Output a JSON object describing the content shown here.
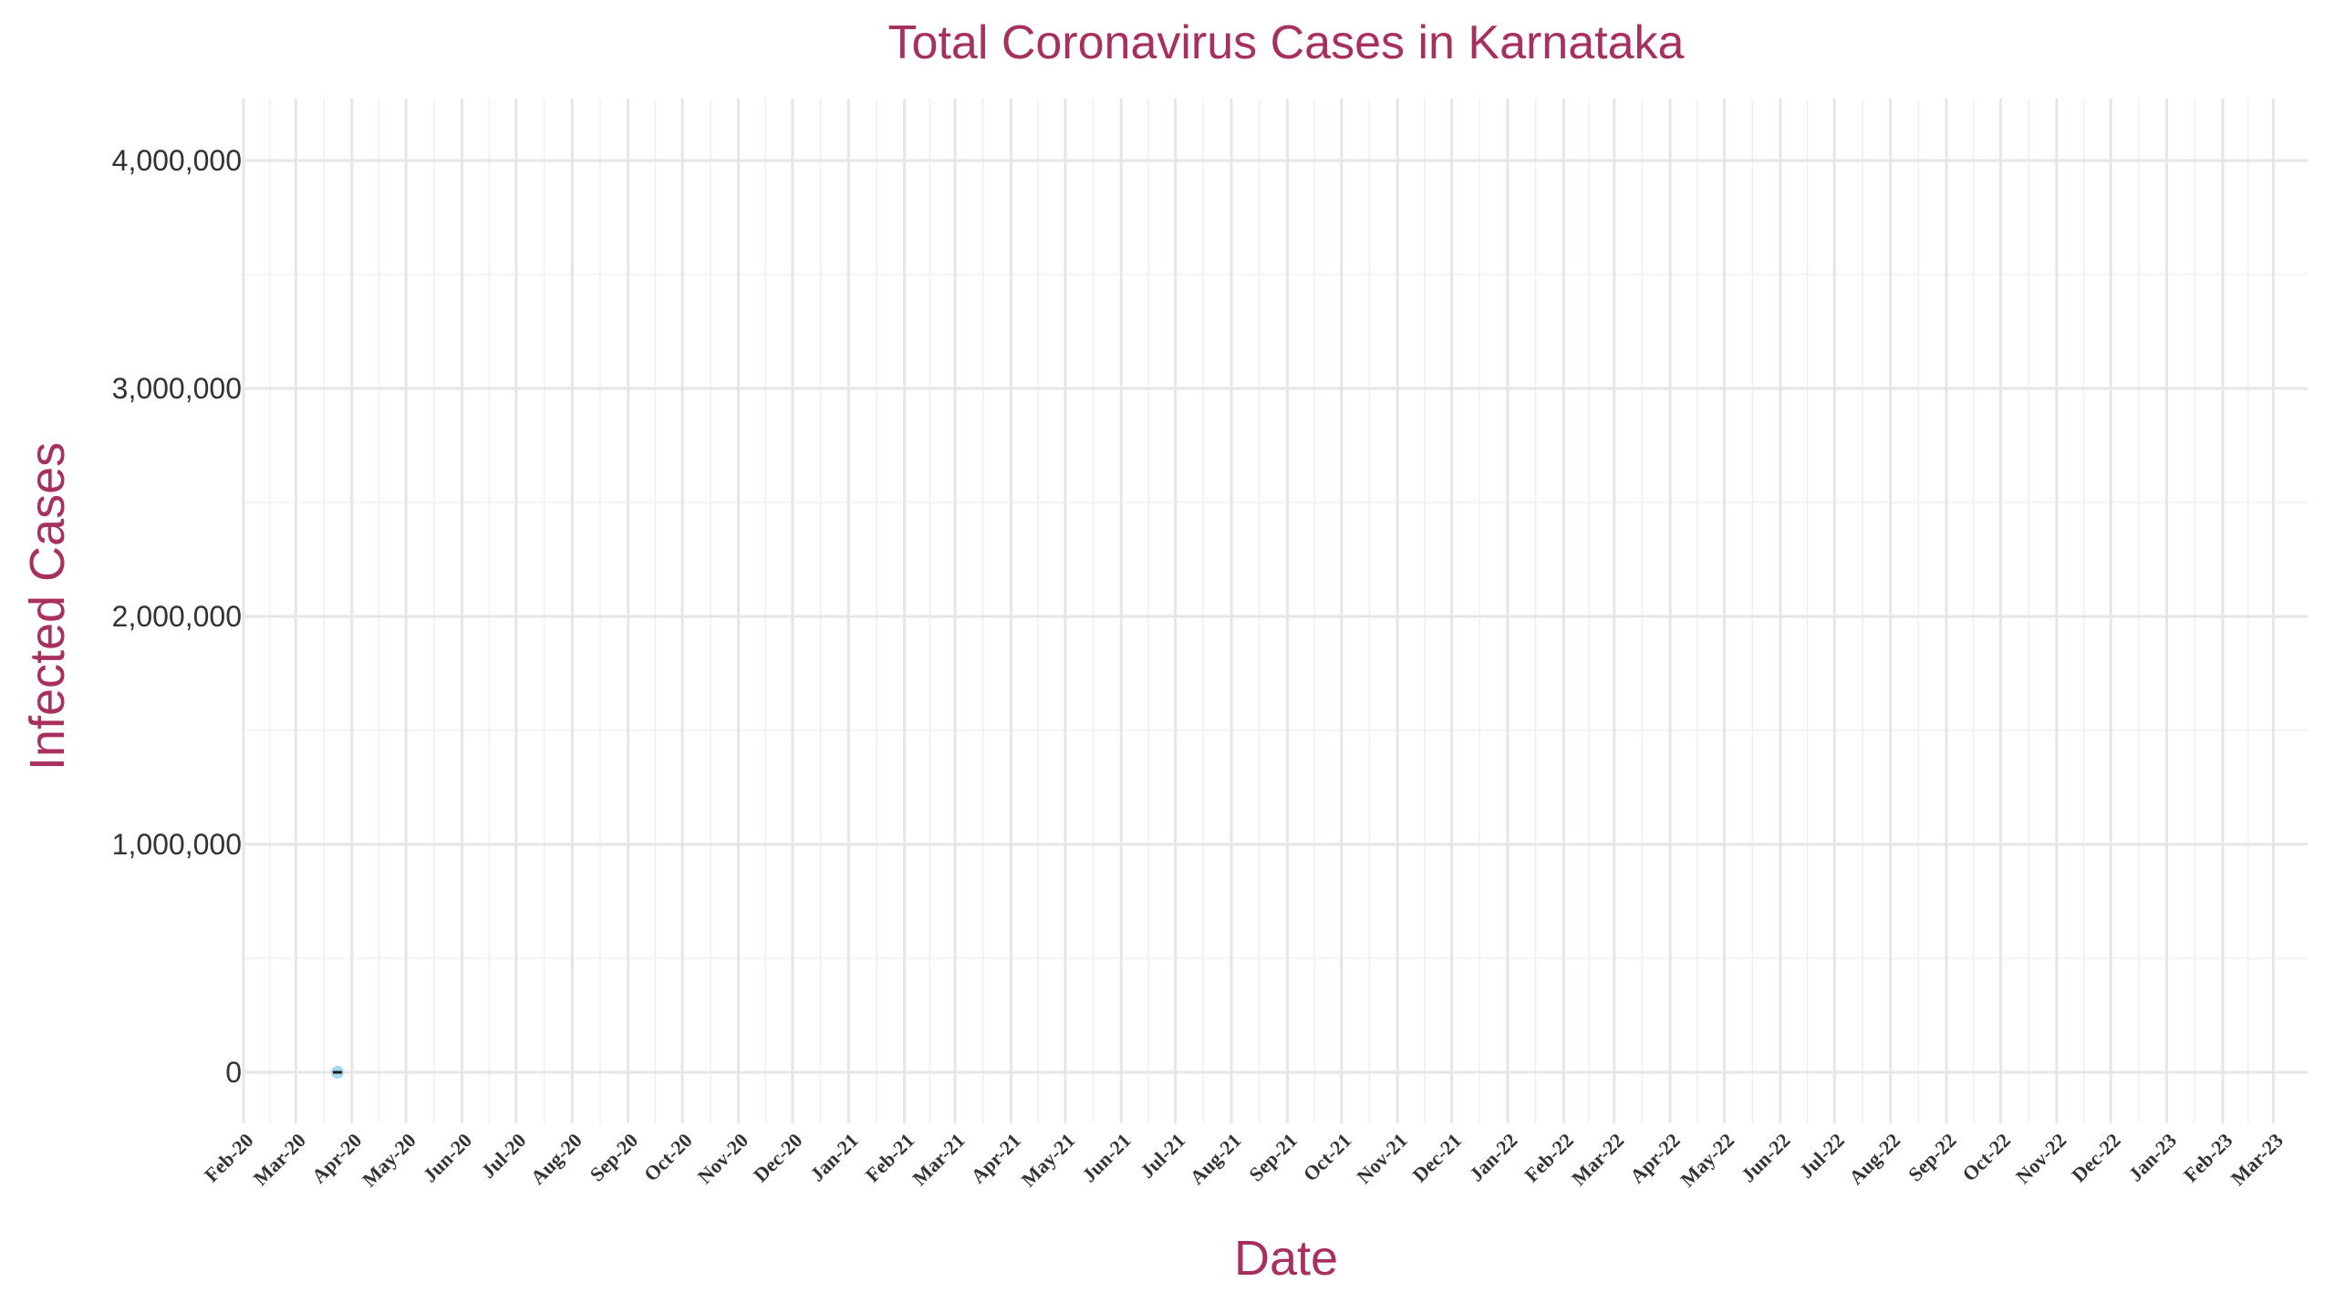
{
  "chart_data": {
    "type": "scatter",
    "title": "Total Coronavirus Cases in Karnataka",
    "xlabel": "Date",
    "ylabel": "Infected Cases",
    "x_tick_labels": [
      "Feb-20",
      "Mar-20",
      "Apr-20",
      "May-20",
      "Jun-20",
      "Jul-20",
      "Aug-20",
      "Sep-20",
      "Oct-20",
      "Nov-20",
      "Dec-20",
      "Jan-21",
      "Feb-21",
      "Mar-21",
      "Apr-21",
      "May-21",
      "Jun-21",
      "Jul-21",
      "Aug-21",
      "Sep-21",
      "Oct-21",
      "Nov-21",
      "Dec-21",
      "Jan-22",
      "Feb-22",
      "Mar-22",
      "Apr-22",
      "May-22",
      "Jun-22",
      "Jul-22",
      "Aug-22",
      "Sep-22",
      "Oct-22",
      "Nov-22",
      "Dec-22",
      "Jan-23",
      "Feb-23",
      "Mar-23"
    ],
    "xlim": [
      "2020-01-31",
      "2023-03-20"
    ],
    "y_ticks": [
      0,
      1000000,
      2000000,
      3000000,
      4000000
    ],
    "y_tick_labels": [
      "0",
      "1,000,000",
      "2,000,000",
      "3,000,000",
      "4,000,000"
    ],
    "ylim": [
      -250000,
      4270000
    ],
    "grid": true,
    "legend": "none",
    "series": [
      {
        "points": [
          {
            "x": "2020-03-24",
            "y": 0
          }
        ],
        "color": "#a6d8ec"
      }
    ],
    "colors": {
      "title": "#a8305f",
      "axis_label": "#a8305f",
      "tick_text": "#333333",
      "grid": "#e6e6e6",
      "point": "#a6d8ec"
    }
  }
}
